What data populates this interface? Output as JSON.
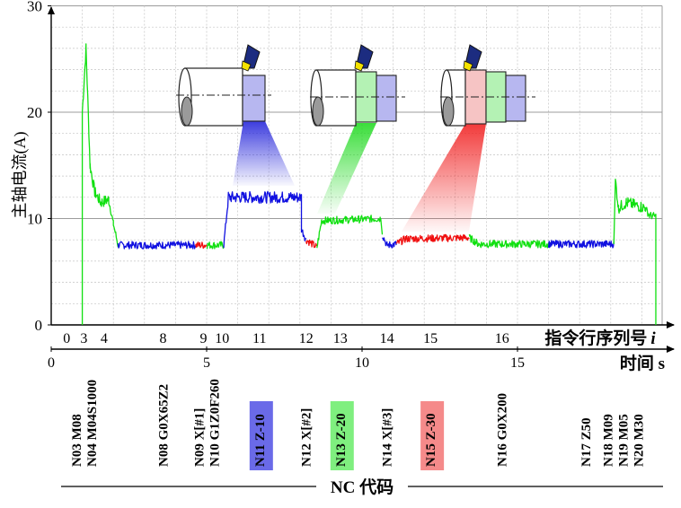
{
  "chart_data": {
    "type": "line",
    "ylabel": "主轴电流(A)",
    "xlabel_seq": "指令行序列号",
    "xlabel_seq_var": "i",
    "xlabel_time": "时间 s",
    "ylim": [
      0,
      30
    ],
    "xlim": [
      0,
      20
    ],
    "grid": true,
    "y_ticks": [
      "0",
      "10",
      "20",
      "30"
    ],
    "time_ticks": [
      {
        "v": 0,
        "label": "0"
      },
      {
        "v": 5,
        "label": "5"
      },
      {
        "v": 10,
        "label": "10"
      },
      {
        "v": 15,
        "label": "15"
      }
    ],
    "seq_ticks": [
      {
        "t": 0.5,
        "label": "0"
      },
      {
        "t": 1.05,
        "label": "3"
      },
      {
        "t": 1.7,
        "label": "4"
      },
      {
        "t": 3.6,
        "label": "8"
      },
      {
        "t": 4.9,
        "label": "9"
      },
      {
        "t": 5.5,
        "label": "10"
      },
      {
        "t": 6.7,
        "label": "11"
      },
      {
        "t": 8.2,
        "label": "12"
      },
      {
        "t": 9.3,
        "label": "13"
      },
      {
        "t": 10.8,
        "label": "14"
      },
      {
        "t": 12.2,
        "label": "15"
      },
      {
        "t": 14.5,
        "label": "16"
      }
    ],
    "series_colors": {
      "blue": "#1010e0",
      "red": "#f01010",
      "green": "#10e010"
    },
    "segments": [
      {
        "color": "green",
        "points": [
          [
            1.0,
            0
          ],
          [
            1.0,
            20
          ],
          [
            1.12,
            26
          ],
          [
            1.25,
            15
          ],
          [
            1.4,
            12.5
          ],
          [
            1.6,
            11.5
          ],
          [
            1.85,
            11.8
          ],
          [
            2.0,
            9.5
          ],
          [
            2.15,
            7.5
          ]
        ]
      },
      {
        "color": "blue",
        "points": [
          [
            2.15,
            7.5
          ],
          [
            4.65,
            7.5
          ]
        ]
      },
      {
        "color": "red",
        "points": [
          [
            4.65,
            7.5
          ],
          [
            5.0,
            7.5
          ]
        ]
      },
      {
        "color": "green",
        "points": [
          [
            5.0,
            7.5
          ],
          [
            5.55,
            7.5
          ]
        ]
      },
      {
        "color": "blue",
        "points": [
          [
            5.55,
            7.5
          ],
          [
            5.7,
            12.0
          ],
          [
            8.05,
            12.0
          ],
          [
            8.05,
            9.0
          ],
          [
            8.2,
            8.0
          ]
        ]
      },
      {
        "color": "red",
        "points": [
          [
            8.2,
            8.0
          ],
          [
            8.55,
            7.3
          ]
        ]
      },
      {
        "color": "green",
        "points": [
          [
            8.55,
            7.3
          ],
          [
            8.7,
            9.8
          ],
          [
            10.6,
            10.0
          ],
          [
            10.65,
            8.5
          ]
        ]
      },
      {
        "color": "blue",
        "points": [
          [
            10.65,
            8.5
          ],
          [
            10.8,
            7.5
          ],
          [
            11.1,
            7.6
          ]
        ]
      },
      {
        "color": "red",
        "points": [
          [
            11.1,
            7.6
          ],
          [
            11.4,
            8.1
          ],
          [
            13.45,
            8.2
          ]
        ]
      },
      {
        "color": "green",
        "points": [
          [
            13.45,
            8.2
          ],
          [
            13.75,
            7.6
          ],
          [
            16.0,
            7.6
          ]
        ]
      },
      {
        "color": "blue",
        "points": [
          [
            16.0,
            7.6
          ],
          [
            18.1,
            7.6
          ]
        ]
      },
      {
        "color": "green",
        "points": [
          [
            18.1,
            7.6
          ],
          [
            18.15,
            13.6
          ],
          [
            18.25,
            11.0
          ],
          [
            18.5,
            11.5
          ],
          [
            19.1,
            11.0
          ],
          [
            19.25,
            10.3
          ],
          [
            19.45,
            10.2
          ],
          [
            19.45,
            0
          ]
        ]
      }
    ],
    "nc_codes": [
      {
        "t": 1.05,
        "lines": [
          "N03 M08",
          "N04 M04S1000"
        ]
      },
      {
        "t": 3.6,
        "lines": [
          "N08 G0X65Z2"
        ]
      },
      {
        "t": 5.0,
        "lines": [
          "N09 X[#1]",
          "N10 G1Z0F260"
        ]
      },
      {
        "t": 6.7,
        "lines": [
          "N11 Z-10"
        ],
        "highlight": "#6a6ae8"
      },
      {
        "t": 8.2,
        "lines": [
          "N12 X[#2]"
        ]
      },
      {
        "t": 9.3,
        "lines": [
          "N13 Z-20"
        ],
        "highlight": "#7fef7f"
      },
      {
        "t": 10.8,
        "lines": [
          "N14 X[#3]"
        ]
      },
      {
        "t": 12.2,
        "lines": [
          "N15 Z-30"
        ],
        "highlight": "#f58a8a"
      },
      {
        "t": 14.5,
        "lines": [
          "N16 G0X200"
        ]
      },
      {
        "t": 17.2,
        "lines": [
          "N17 Z50"
        ]
      },
      {
        "t": 18.4,
        "lines": [
          "N18 M09",
          "N19 M05",
          "N20 M30"
        ]
      }
    ],
    "nc_label": "NC 代码"
  }
}
